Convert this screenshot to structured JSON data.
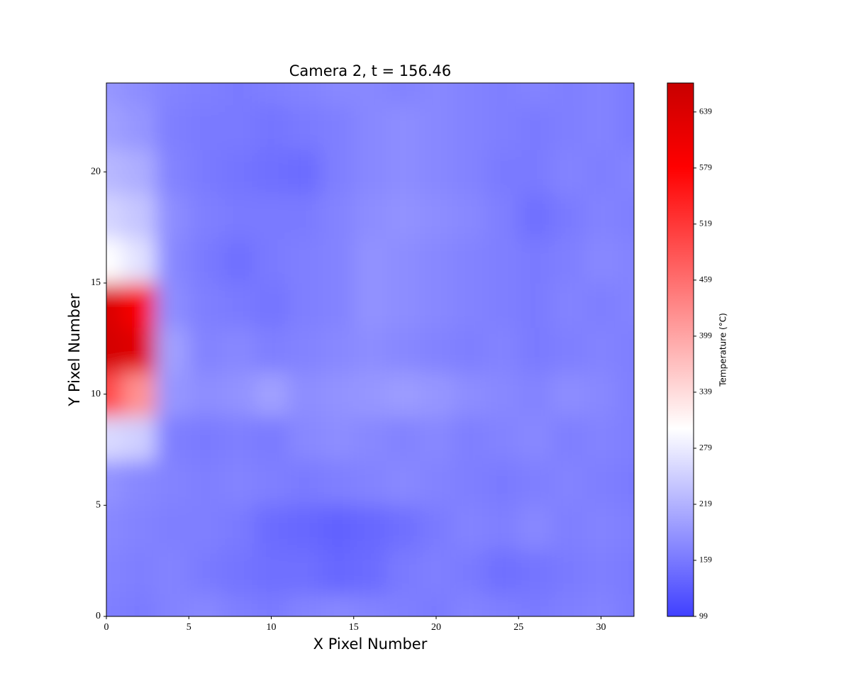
{
  "chart_data": {
    "type": "contour",
    "title": "Camera 2, t = 156.46",
    "x_label": "X Pixel Number",
    "y_label": "Y Pixel Number",
    "x": [
      0,
      2,
      4,
      6,
      8,
      10,
      12,
      14,
      16,
      18,
      20,
      22,
      24,
      26,
      28,
      30,
      32
    ],
    "y": [
      0,
      2,
      4,
      6,
      8,
      10,
      12,
      14,
      16,
      18,
      20,
      22,
      24
    ],
    "z": [
      [
        165,
        160,
        170,
        175,
        165,
        160,
        170,
        175,
        170,
        165,
        160,
        170,
        165,
        160,
        165,
        170,
        160
      ],
      [
        170,
        165,
        170,
        160,
        155,
        150,
        150,
        140,
        145,
        160,
        165,
        160,
        150,
        155,
        160,
        165,
        160
      ],
      [
        175,
        170,
        165,
        165,
        160,
        145,
        140,
        135,
        140,
        150,
        160,
        170,
        165,
        175,
        165,
        170,
        165
      ],
      [
        185,
        175,
        170,
        165,
        170,
        165,
        160,
        165,
        170,
        175,
        170,
        165,
        160,
        165,
        170,
        165,
        160
      ],
      [
        260,
        250,
        165,
        160,
        165,
        160,
        175,
        180,
        175,
        170,
        175,
        165,
        170,
        175,
        165,
        170,
        165
      ],
      [
        500,
        420,
        190,
        180,
        185,
        200,
        180,
        185,
        190,
        195,
        190,
        180,
        175,
        170,
        180,
        175,
        165
      ],
      [
        650,
        630,
        200,
        170,
        175,
        165,
        170,
        175,
        180,
        175,
        170,
        165,
        170,
        160,
        165,
        170,
        165
      ],
      [
        640,
        590,
        180,
        165,
        160,
        155,
        165,
        170,
        185,
        180,
        175,
        170,
        165,
        160,
        170,
        165,
        170
      ],
      [
        300,
        270,
        175,
        160,
        150,
        160,
        165,
        170,
        185,
        180,
        175,
        170,
        165,
        160,
        165,
        175,
        170
      ],
      [
        255,
        240,
        180,
        165,
        160,
        160,
        160,
        170,
        180,
        185,
        180,
        175,
        165,
        150,
        160,
        170,
        165
      ],
      [
        225,
        215,
        170,
        160,
        155,
        150,
        145,
        165,
        175,
        180,
        175,
        170,
        160,
        160,
        170,
        165,
        170
      ],
      [
        200,
        190,
        165,
        160,
        160,
        155,
        160,
        165,
        175,
        180,
        175,
        170,
        165,
        160,
        165,
        170,
        160
      ],
      [
        190,
        180,
        170,
        165,
        160,
        165,
        170,
        175,
        175,
        170,
        175,
        170,
        165,
        170,
        165,
        170,
        160
      ]
    ],
    "xlim": [
      0,
      32
    ],
    "ylim": [
      0,
      24
    ],
    "xticks": [
      0,
      5,
      10,
      15,
      20,
      25,
      30
    ],
    "yticks": [
      0,
      5,
      10,
      15,
      20
    ],
    "colorbar": {
      "label": "Temperature (°C)",
      "lim": [
        99,
        670
      ],
      "ticks": [
        99,
        159,
        219,
        279,
        339,
        399,
        459,
        519,
        579,
        639
      ],
      "colormap": [
        {
          "value": 99,
          "color": "#4040ff"
        },
        {
          "value": 300,
          "color": "#ffffff"
        },
        {
          "value": 580,
          "color": "#ff0000"
        },
        {
          "value": 670,
          "color": "#c80000"
        }
      ]
    }
  }
}
